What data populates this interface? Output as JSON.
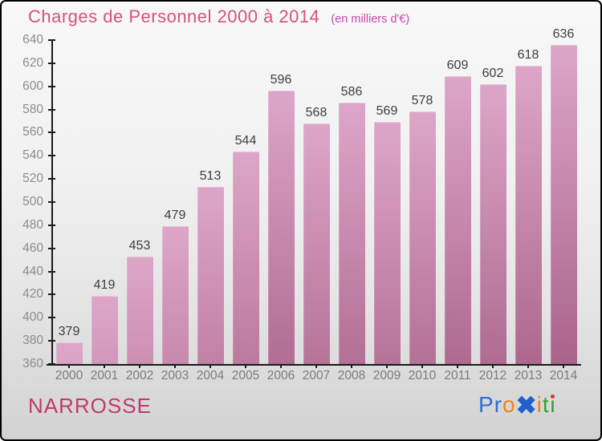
{
  "header": {
    "title_color": "#d4517e",
    "subtitle_color": "#c748af"
  },
  "chart_data": {
    "type": "bar",
    "title": "Charges de Personnel 2000 à 2014",
    "subtitle": "(en milliers d'€)",
    "categories": [
      "2000",
      "2001",
      "2002",
      "2003",
      "2004",
      "2005",
      "2006",
      "2007",
      "2008",
      "2009",
      "2010",
      "2011",
      "2012",
      "2013",
      "2014"
    ],
    "values": [
      379,
      419,
      453,
      479,
      513,
      544,
      596,
      568,
      586,
      569,
      578,
      609,
      602,
      618,
      636
    ],
    "ylim": [
      360,
      640
    ],
    "yticks": [
      640,
      620,
      600,
      580,
      560,
      540,
      520,
      500,
      480,
      460,
      440,
      420,
      400,
      380,
      360
    ],
    "grid": false,
    "legend": false,
    "bar_color_top": "#dda6c8",
    "bar_color_bottom": "#a96289",
    "axis_color": "#1a1a1a",
    "ytick_label_color": "#8c8c8c",
    "xtick_label_color": "#7c7c7c",
    "value_label_color": "#3d3d3d"
  },
  "footer": {
    "location": "NARROSSE",
    "location_color": "#bf3a6d",
    "logo": {
      "name": "Proxiti",
      "letters": [
        {
          "ch": "P",
          "color": "#2d6fd3"
        },
        {
          "ch": "r",
          "color": "#2d6fd3"
        },
        {
          "ch": "o",
          "color": "#f5820c"
        },
        {
          "ch": "✖",
          "color": "#2160cc",
          "x": true
        },
        {
          "ch": "i",
          "color": "#f5820c"
        },
        {
          "ch": "t",
          "color": "#2fa52f"
        },
        {
          "ch": "ı",
          "color": "#2fa52f",
          "dot": "#e0341f"
        }
      ]
    }
  }
}
